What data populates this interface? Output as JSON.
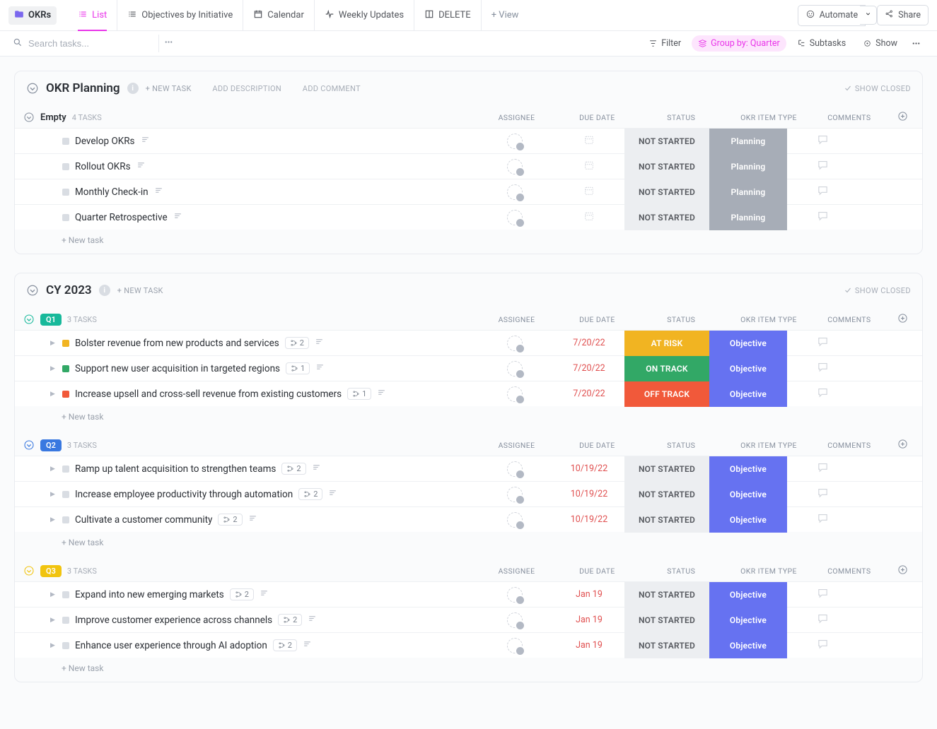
{
  "toolbar": {
    "project_name": "OKRs",
    "tabs": [
      {
        "id": "list",
        "label": "List",
        "active": true
      },
      {
        "id": "obj",
        "label": "Objectives by Initiative"
      },
      {
        "id": "cal",
        "label": "Calendar"
      },
      {
        "id": "weekly",
        "label": "Weekly Updates"
      },
      {
        "id": "del",
        "label": "DELETE"
      }
    ],
    "add_view": "+  View",
    "automate": "Automate",
    "share": "Share"
  },
  "subbar": {
    "search_ph": "Search tasks...",
    "filter": "Filter",
    "groupby": "Group by: Quarter",
    "subtasks": "Subtasks",
    "show": "Show"
  },
  "columns": {
    "assignee": "ASSIGNEE",
    "due": "DUE DATE",
    "status": "STATUS",
    "type": "OKR ITEM TYPE",
    "comments": "COMMENTS"
  },
  "text": {
    "new_task_caps": "+ NEW TASK",
    "add_desc": "ADD DESCRIPTION",
    "add_comment": "ADD COMMENT",
    "show_closed": "SHOW CLOSED",
    "new_task_row": "+ New task"
  },
  "colors": {
    "accent": "#e935e9",
    "q1": "#18b99b",
    "q1_chev": "#18b99b",
    "q2": "#3978e0",
    "q2_chev": "#3978e0",
    "q3": "#f1c40f",
    "q3_chev": "#f1c40f",
    "status_notstarted_bg": "#eceef1",
    "status_atrisk": "#f1b422",
    "status_ontrack": "#32a866",
    "status_offtrack": "#f1593a",
    "type_planning": "#a7adb7",
    "type_objective": "#6672f1",
    "task_amber": "#f1b422",
    "task_green": "#32a866",
    "task_red": "#f1593a"
  },
  "sections": [
    {
      "id": "plan",
      "title": "OKR Planning",
      "show_info": true,
      "head_actions": [
        "new_task_caps",
        "add_desc",
        "add_comment"
      ],
      "groups": [
        {
          "id": "empty",
          "label": "Empty",
          "count": "4 TASKS",
          "tasks": [
            {
              "name": "Develop OKRs",
              "has_desc": true,
              "status": "NOT STARTED",
              "type": "Planning",
              "type_class": "planning"
            },
            {
              "name": "Rollout OKRs",
              "has_desc": true,
              "status": "NOT STARTED",
              "type": "Planning",
              "type_class": "planning"
            },
            {
              "name": "Monthly Check-in",
              "has_desc": true,
              "status": "NOT STARTED",
              "type": "Planning",
              "type_class": "planning"
            },
            {
              "name": "Quarter Retrospective",
              "has_desc": true,
              "status": "NOT STARTED",
              "type": "Planning",
              "type_class": "planning"
            }
          ]
        }
      ]
    },
    {
      "id": "cy23",
      "title": "CY 2023",
      "show_info": true,
      "head_actions": [
        "new_task_caps"
      ],
      "groups": [
        {
          "id": "q1",
          "pill": "Q1",
          "pill_color": "q1",
          "chev_color": "q1_chev",
          "count": "3 TASKS",
          "tasks": [
            {
              "name": "Bolster revenue from new products and services",
              "expander": true,
              "square_color": "task_amber",
              "sub": "2",
              "has_desc": true,
              "due": "7/20/22",
              "due_red": true,
              "status": "AT RISK",
              "status_class": "atrisk",
              "type": "Objective",
              "type_class": "objective"
            },
            {
              "name": "Support new user acquisition in targeted regions",
              "expander": true,
              "square_color": "task_green",
              "sub": "1",
              "has_desc": true,
              "due": "7/20/22",
              "due_red": true,
              "status": "ON TRACK",
              "status_class": "ontrack",
              "type": "Objective",
              "type_class": "objective"
            },
            {
              "name": "Increase upsell and cross-sell revenue from existing customers",
              "expander": true,
              "square_color": "task_red",
              "sub": "1",
              "has_desc": true,
              "due": "7/20/22",
              "due_red": true,
              "status": "OFF TRACK",
              "status_class": "offtrack",
              "type": "Objective",
              "type_class": "objective"
            }
          ]
        },
        {
          "id": "q2",
          "pill": "Q2",
          "pill_color": "q2",
          "chev_color": "q2_chev",
          "count": "3 TASKS",
          "tasks": [
            {
              "name": "Ramp up talent acquisition to strengthen teams",
              "expander": true,
              "sub": "2",
              "has_desc": true,
              "due": "10/19/22",
              "due_red": true,
              "status": "NOT STARTED",
              "type": "Objective",
              "type_class": "objective"
            },
            {
              "name": "Increase employee productivity through automation",
              "expander": true,
              "sub": "2",
              "has_desc": true,
              "due": "10/19/22",
              "due_red": true,
              "status": "NOT STARTED",
              "type": "Objective",
              "type_class": "objective"
            },
            {
              "name": "Cultivate a customer community",
              "expander": true,
              "sub": "2",
              "has_desc": true,
              "due": "10/19/22",
              "due_red": true,
              "status": "NOT STARTED",
              "type": "Objective",
              "type_class": "objective"
            }
          ]
        },
        {
          "id": "q3",
          "pill": "Q3",
          "pill_color": "q3",
          "chev_color": "q3_chev",
          "count": "3 TASKS",
          "tasks": [
            {
              "name": "Expand into new emerging markets",
              "expander": true,
              "sub": "2",
              "has_desc": true,
              "due": "Jan 19",
              "due_red": true,
              "status": "NOT STARTED",
              "type": "Objective",
              "type_class": "objective"
            },
            {
              "name": "Improve customer experience across channels",
              "expander": true,
              "sub": "2",
              "has_desc": true,
              "due": "Jan 19",
              "due_red": true,
              "status": "NOT STARTED",
              "type": "Objective",
              "type_class": "objective"
            },
            {
              "name": "Enhance user experience through AI adoption",
              "expander": true,
              "sub": "2",
              "has_desc": true,
              "due": "Jan 19",
              "due_red": true,
              "status": "NOT STARTED",
              "type": "Objective",
              "type_class": "objective"
            }
          ]
        }
      ]
    }
  ]
}
